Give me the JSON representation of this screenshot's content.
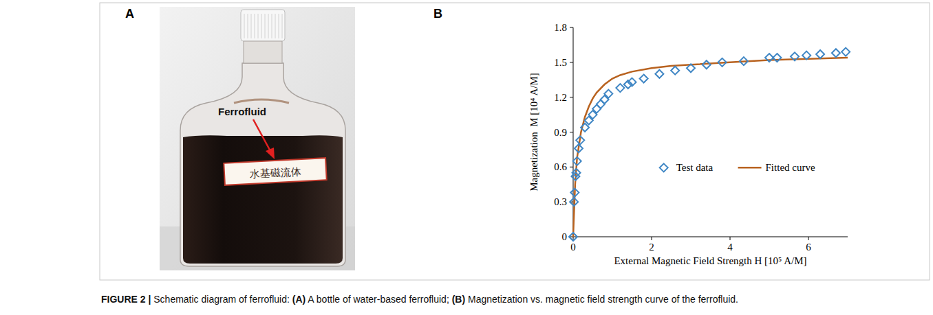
{
  "chart_data": {
    "type": "scatter",
    "xlabel": "External Magnetic Field Strength H [10⁵ A/M]",
    "ylabel": "Magnetization  M [10⁴ A/M]",
    "xlim": [
      0,
      7
    ],
    "xticks": [
      0,
      2,
      4,
      6
    ],
    "ylim": [
      0,
      1.8
    ],
    "yticks": [
      0,
      0.3,
      0.6,
      0.9,
      1.2,
      1.5,
      1.8
    ],
    "grid": false,
    "legend": "center",
    "series": [
      {
        "name": "Test data",
        "type": "scatter",
        "marker": "diamond",
        "color": "#3f86c4",
        "x": [
          0,
          0.02,
          0.04,
          0.06,
          0.08,
          0.1,
          0.14,
          0.18,
          0.3,
          0.4,
          0.5,
          0.6,
          0.7,
          0.8,
          0.9,
          1.2,
          1.4,
          1.5,
          1.8,
          2.2,
          2.6,
          3.0,
          3.4,
          3.8,
          4.35,
          5.0,
          5.2,
          5.65,
          5.95,
          6.3,
          6.7,
          6.95
        ],
        "values": [
          0,
          0.3,
          0.38,
          0.52,
          0.55,
          0.65,
          0.76,
          0.83,
          0.94,
          1.0,
          1.05,
          1.1,
          1.14,
          1.18,
          1.23,
          1.28,
          1.31,
          1.33,
          1.36,
          1.4,
          1.43,
          1.45,
          1.48,
          1.5,
          1.51,
          1.54,
          1.54,
          1.55,
          1.56,
          1.57,
          1.58,
          1.59
        ]
      },
      {
        "name": "Fitted curve",
        "type": "line",
        "line_style": "solid",
        "color": "#b8621f",
        "x": [
          0,
          0.05,
          0.1,
          0.2,
          0.3,
          0.4,
          0.5,
          0.6,
          0.8,
          1.0,
          1.2,
          1.5,
          2,
          2.5,
          3,
          4,
          5,
          6,
          7
        ],
        "values": [
          0,
          0.45,
          0.68,
          0.9,
          1.03,
          1.12,
          1.19,
          1.24,
          1.31,
          1.36,
          1.39,
          1.42,
          1.45,
          1.47,
          1.48,
          1.5,
          1.52,
          1.53,
          1.54
        ]
      }
    ]
  },
  "panels": {
    "a": "A",
    "b": "B"
  },
  "photo": {
    "pointer_label": "Ferrofluid",
    "bottle_label": "水基磁流体"
  },
  "caption": [
    {
      "text": "FIGURE 2 | ",
      "bold": true
    },
    {
      "text": "Schematic diagram of ferrofluid: ",
      "bold": false
    },
    {
      "text": "(A)",
      "bold": true
    },
    {
      "text": " A bottle of water-based ferrofluid; ",
      "bold": false
    },
    {
      "text": "(B)",
      "bold": true
    },
    {
      "text": " Magnetization vs. magnetic field strength curve of the ferrofluid.",
      "bold": false
    }
  ]
}
